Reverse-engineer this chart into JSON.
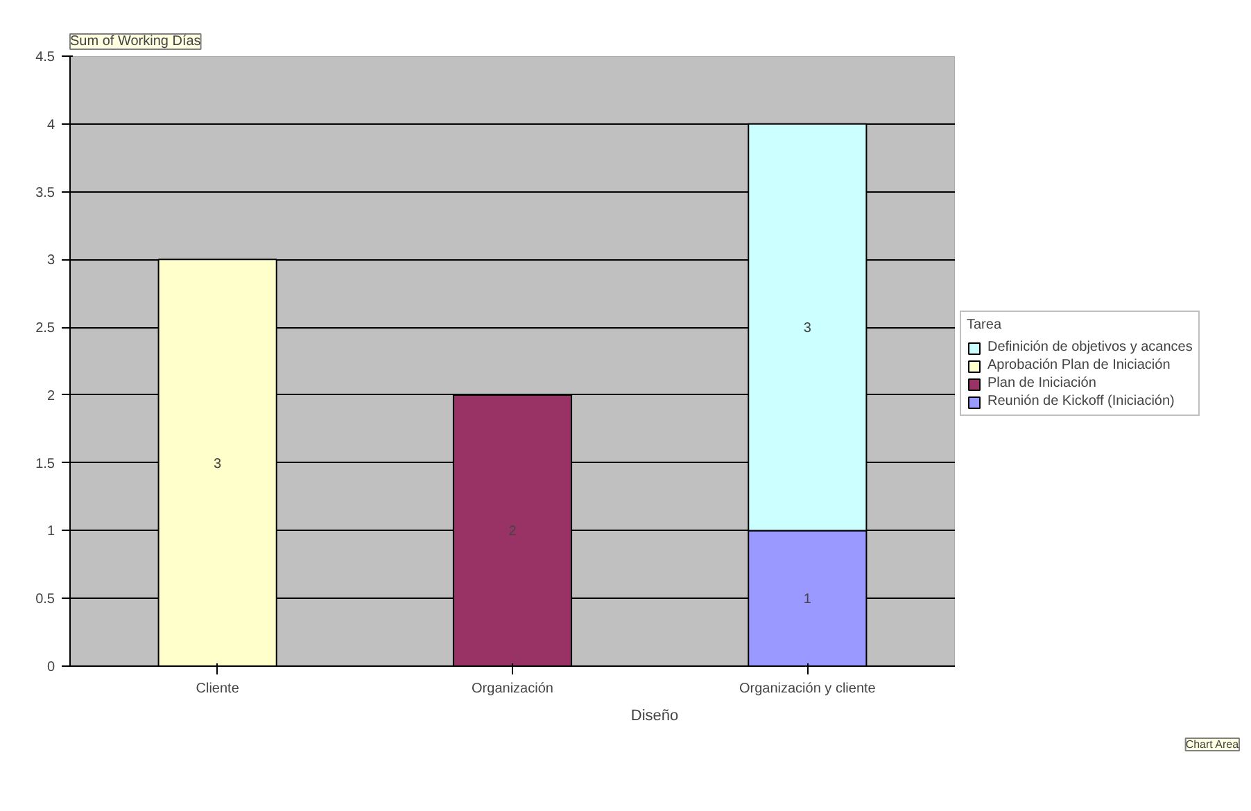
{
  "chart_data": {
    "type": "bar",
    "stacked": true,
    "title": "Sum of Working Días",
    "xlabel": "Diseño",
    "legend_title": "Tarea",
    "categories": [
      "Cliente",
      "Organización",
      "Organización y cliente"
    ],
    "series": [
      {
        "name": "Reunión de Kickoff (Iniciación)",
        "color": "#9999ff",
        "values": [
          null,
          null,
          1
        ]
      },
      {
        "name": "Plan de Iniciación",
        "color": "#993366",
        "values": [
          null,
          2,
          null
        ]
      },
      {
        "name": "Aprobación Plan de Iniciación",
        "color": "#ffffcc",
        "values": [
          3,
          null,
          null
        ]
      },
      {
        "name": "Definición de objetivos y acances",
        "color": "#ccffff",
        "values": [
          null,
          null,
          3
        ]
      }
    ],
    "ylim": [
      0,
      4.5
    ],
    "yticks": [
      0,
      0.5,
      1,
      1.5,
      2,
      2.5,
      3,
      3.5,
      4,
      4.5
    ],
    "grid": "y",
    "legend": "right",
    "data_labels": true,
    "annotations": [
      "Chart Area"
    ]
  }
}
